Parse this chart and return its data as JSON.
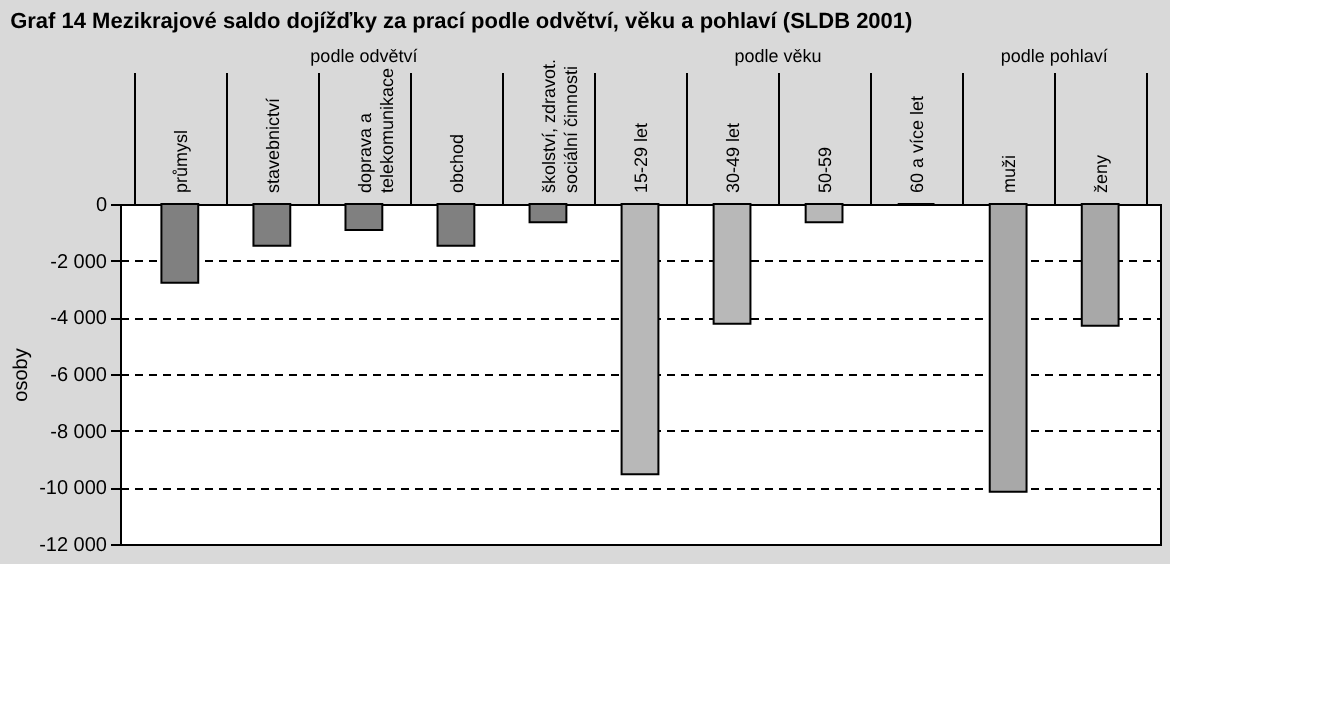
{
  "chart_data": {
    "type": "bar",
    "title": "Graf 14 Mezikrajové saldo dojížďky za prací podle odvětví, věku a pohlaví (SLDB 2001)",
    "ylabel": "osoby",
    "categories": [
      "průmysl",
      "stavebnictví",
      "doprava a telekomunikace",
      "obchod",
      "školství, zdravot. sociální činnosti",
      "15-29 let",
      "30-49 let",
      "50-59",
      "60 a více let",
      "muži",
      "ženy"
    ],
    "values": [
      -2780,
      -1470,
      -920,
      -1470,
      -640,
      -9540,
      -4230,
      -640,
      0,
      -10160,
      -4300
    ],
    "colors": [
      "#808080",
      "#808080",
      "#808080",
      "#808080",
      "#808080",
      "#b8b8b8",
      "#b8b8b8",
      "#b8b8b8",
      "#b8b8b8",
      "#a8a8a8",
      "#a8a8a8"
    ],
    "annotations": [
      "podle odvětví",
      "podle věku",
      "podle pohlaví"
    ],
    "ylim": [
      -12000,
      0
    ],
    "yticks": [
      -12000,
      -10000,
      -8000,
      -6000,
      -4000,
      -2000,
      0
    ],
    "grid": "y"
  }
}
